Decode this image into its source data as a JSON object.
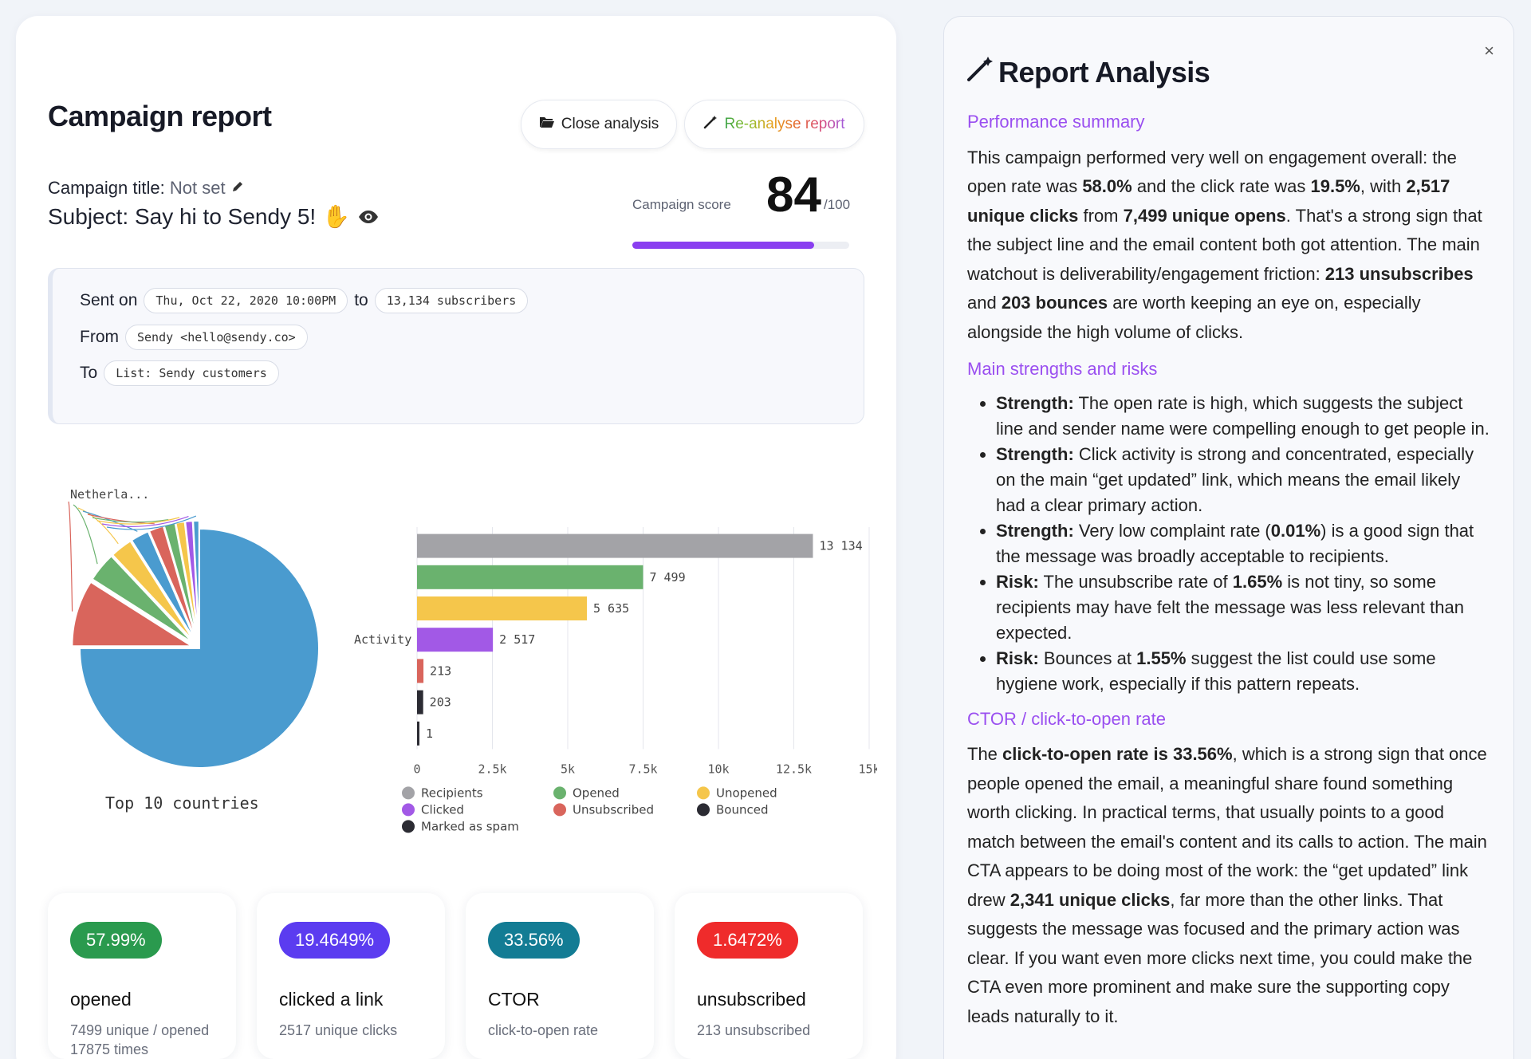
{
  "report": {
    "title": "Campaign report",
    "close_analysis_label": "Close analysis",
    "reanalyse_label": "Re-analyse report",
    "campaign_title_label": "Campaign title:",
    "campaign_title_value": "Not set",
    "subject": "Subject: Say hi to Sendy 5! ✋",
    "score_label": "Campaign score",
    "score": "84",
    "score_max": "/100",
    "score_fraction": 0.84,
    "sent_on_label": "Sent on",
    "sent_on_value": "Thu, Oct 22, 2020 10:00PM",
    "to_label": "to",
    "subscribers": "13,134 subscribers",
    "from_label": "From",
    "from_value": "Sendy <hello@sendy.co>",
    "list_label": "To",
    "list_value": "List: Sendy customers"
  },
  "chart_data": [
    {
      "type": "pie",
      "title": "Top 10 countries",
      "visible_labels": [
        "Netherla..."
      ],
      "slices": [
        {
          "value": 75,
          "color": "#4a9bcf"
        },
        {
          "value": 9,
          "color": "#d9655c"
        },
        {
          "value": 4,
          "color": "#6ab26e"
        },
        {
          "value": 3,
          "color": "#f5c64b"
        },
        {
          "value": 2.5,
          "color": "#4a9bcf"
        },
        {
          "value": 2,
          "color": "#d9655c"
        },
        {
          "value": 1.5,
          "color": "#6ab26e"
        },
        {
          "value": 1.2,
          "color": "#f5c64b"
        },
        {
          "value": 1,
          "color": "#a259e6"
        },
        {
          "value": 0.8,
          "color": "#4a9bcf"
        }
      ]
    },
    {
      "type": "bar",
      "orientation": "horizontal",
      "ylabel": "Activity",
      "categories": [
        "Recipients",
        "Opened",
        "Unopened",
        "Clicked",
        "Unsubscribed",
        "Bounced",
        "Marked as spam"
      ],
      "values": [
        13134,
        7499,
        5635,
        2517,
        213,
        203,
        1
      ],
      "value_labels": [
        "13 134",
        "7 499",
        "5 635",
        "2 517",
        "213",
        "203",
        "1"
      ],
      "colors": [
        "#a3a3a7",
        "#6ab26e",
        "#f5c64b",
        "#a259e6",
        "#d9655c",
        "#2b2b33",
        "#2b2b33"
      ],
      "xlim": [
        0,
        15000
      ],
      "xticks": [
        "0",
        "2.5k",
        "5k",
        "7.5k",
        "10k",
        "12.5k",
        "15k"
      ],
      "grid": true,
      "legend_placement": "bottom"
    }
  ],
  "stats": [
    {
      "badge": "57.99%",
      "color": "#2a9a4e",
      "label": "opened",
      "sub": "7499 unique / opened 17875 times"
    },
    {
      "badge": "19.4649%",
      "color": "#5b3cf0",
      "label": "clicked a link",
      "sub": "2517 unique clicks"
    },
    {
      "badge": "33.56%",
      "color": "#137c94",
      "label": "CTOR",
      "sub": "click-to-open rate"
    },
    {
      "badge": "1.6472%",
      "color": "#ef2b2b",
      "label": "unsubscribed",
      "sub": "213 unsubscribed"
    }
  ],
  "analysis": {
    "title": "Report Analysis",
    "close": "×",
    "h_summary": "Performance summary",
    "h_strengths": "Main strengths and risks",
    "h_ctor": "CTOR / click-to-open rate"
  }
}
